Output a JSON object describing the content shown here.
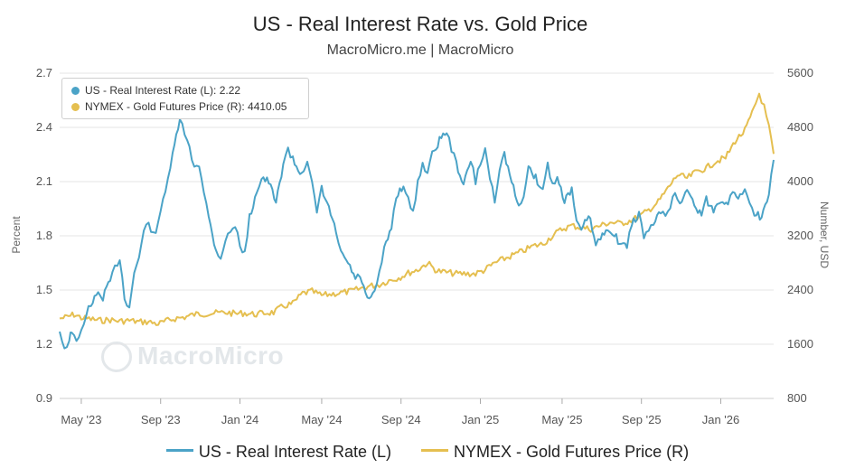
{
  "header": {
    "title": "US - Real Interest Rate vs. Gold Price",
    "subtitle": "MacroMicro.me | MacroMicro"
  },
  "watermark": {
    "text": "MacroMicro",
    "icon": "macromicro-logo-icon"
  },
  "tooltip": {
    "rate_label": "US - Real Interest Rate (L): 2.22",
    "gold_label": "NYMEX - Gold Futures Price (R): 4410.05"
  },
  "legend": {
    "rate": "US - Real Interest Rate (L)",
    "gold": "NYMEX - Gold Futures Price (R)"
  },
  "colors": {
    "rate": "#4ba3c7",
    "gold": "#e5bf50",
    "grid": "#e6e6e6"
  },
  "chart_data": {
    "type": "line",
    "title": "US - Real Interest Rate vs. Gold Price",
    "subtitle": "MacroMicro.me | MacroMicro",
    "ylabel_left": "Percent",
    "ylabel_right": "Number, USD",
    "ylim_left": [
      0.9,
      2.7
    ],
    "ylim_right": [
      800,
      5600
    ],
    "yticks_left": [
      "2.7",
      "2.4",
      "2.1",
      "1.8",
      "1.5",
      "1.2",
      "0.9"
    ],
    "yticks_right": [
      "5600",
      "4800",
      "4000",
      "3200",
      "2400",
      "1600",
      "800"
    ],
    "xlim": [
      2023.25,
      2026.22
    ],
    "xticks": [
      {
        "x": 2023.34,
        "label": "May '23"
      },
      {
        "x": 2023.67,
        "label": "Sep '23"
      },
      {
        "x": 2024.0,
        "label": "Jan '24"
      },
      {
        "x": 2024.34,
        "label": "May '24"
      },
      {
        "x": 2024.67,
        "label": "Sep '24"
      },
      {
        "x": 2025.0,
        "label": "Jan '25"
      },
      {
        "x": 2025.34,
        "label": "May '25"
      },
      {
        "x": 2025.67,
        "label": "Sep '25"
      },
      {
        "x": 2026.0,
        "label": "Jan '26"
      }
    ],
    "grid": true,
    "legend_position": "bottom",
    "series": [
      {
        "name": "US - Real Interest Rate (L)",
        "axis": "left",
        "x": [
          2023.25,
          2023.27,
          2023.29,
          2023.3,
          2023.32,
          2023.34,
          2023.36,
          2023.38,
          2023.41,
          2023.43,
          2023.46,
          2023.48,
          2023.5,
          2023.52,
          2023.54,
          2023.56,
          2023.58,
          2023.6,
          2023.62,
          2023.64,
          2023.66,
          2023.68,
          2023.7,
          2023.72,
          2023.75,
          2023.77,
          2023.79,
          2023.81,
          2023.83,
          2023.85,
          2023.87,
          2023.9,
          2023.92,
          2023.94,
          2023.96,
          2023.98,
          2024.0,
          2024.02,
          2024.04,
          2024.07,
          2024.09,
          2024.12,
          2024.15,
          2024.18,
          2024.2,
          2024.22,
          2024.25,
          2024.28,
          2024.3,
          2024.32,
          2024.34,
          2024.37,
          2024.4,
          2024.42,
          2024.45,
          2024.48,
          2024.5,
          2024.53,
          2024.56,
          2024.58,
          2024.6,
          2024.63,
          2024.65,
          2024.68,
          2024.7,
          2024.72,
          2024.74,
          2024.76,
          2024.78,
          2024.8,
          2024.83,
          2024.86,
          2024.88,
          2024.9,
          2024.93,
          2024.96,
          2024.98,
          2025.0,
          2025.02,
          2025.04,
          2025.06,
          2025.08,
          2025.1,
          2025.13,
          2025.16,
          2025.18,
          2025.2,
          2025.23,
          2025.26,
          2025.28,
          2025.3,
          2025.32,
          2025.35,
          2025.38,
          2025.4,
          2025.42,
          2025.45,
          2025.48,
          2025.5,
          2025.53,
          2025.55,
          2025.58,
          2025.61,
          2025.63,
          2025.66,
          2025.68,
          2025.7,
          2025.72,
          2025.75,
          2025.77,
          2025.79,
          2025.81,
          2025.83,
          2025.86,
          2025.89,
          2025.92,
          2025.94,
          2025.97,
          2026.0,
          2026.03,
          2026.05,
          2026.08,
          2026.1,
          2026.12,
          2026.14,
          2026.17,
          2026.2,
          2026.22
        ],
        "y": [
          1.27,
          1.18,
          1.22,
          1.28,
          1.2,
          1.27,
          1.37,
          1.42,
          1.48,
          1.46,
          1.55,
          1.62,
          1.68,
          1.46,
          1.4,
          1.6,
          1.68,
          1.82,
          1.88,
          1.8,
          1.86,
          2.0,
          2.12,
          2.24,
          2.45,
          2.36,
          2.28,
          2.18,
          2.2,
          2.05,
          1.9,
          1.72,
          1.68,
          1.78,
          1.82,
          1.86,
          1.75,
          1.7,
          1.9,
          2.05,
          2.12,
          2.1,
          1.98,
          2.2,
          2.28,
          2.22,
          2.15,
          2.2,
          2.08,
          1.93,
          2.06,
          1.95,
          1.82,
          1.7,
          1.65,
          1.56,
          1.58,
          1.44,
          1.48,
          1.6,
          1.72,
          1.85,
          2.02,
          2.08,
          2.0,
          1.92,
          2.1,
          2.2,
          2.15,
          2.25,
          2.33,
          2.38,
          2.28,
          2.2,
          2.08,
          2.22,
          2.1,
          2.2,
          2.28,
          2.12,
          2.0,
          2.18,
          2.25,
          2.1,
          1.95,
          2.03,
          2.18,
          2.12,
          2.05,
          2.2,
          2.08,
          2.12,
          2.0,
          2.05,
          1.88,
          1.82,
          1.92,
          1.75,
          1.78,
          1.85,
          1.82,
          1.76,
          1.74,
          1.87,
          1.92,
          1.8,
          1.82,
          1.87,
          1.93,
          1.92,
          1.97,
          2.03,
          1.98,
          2.06,
          1.97,
          1.92,
          2.0,
          1.94,
          2.0,
          1.99,
          2.03,
          2.01,
          2.07,
          2.0,
          1.93,
          1.9,
          2.02,
          2.22
        ]
      },
      {
        "name": "NYMEX - Gold Futures Price (R)",
        "axis": "right",
        "x": [
          2023.25,
          2023.28,
          2023.31,
          2023.34,
          2023.38,
          2023.42,
          2023.46,
          2023.5,
          2023.54,
          2023.58,
          2023.62,
          2023.66,
          2023.7,
          2023.73,
          2023.77,
          2023.81,
          2023.85,
          2023.9,
          2023.94,
          2023.98,
          2024.02,
          2024.06,
          2024.1,
          2024.14,
          2024.18,
          2024.22,
          2024.26,
          2024.3,
          2024.34,
          2024.38,
          2024.42,
          2024.46,
          2024.5,
          2024.54,
          2024.58,
          2024.62,
          2024.66,
          2024.7,
          2024.74,
          2024.78,
          2024.82,
          2024.86,
          2024.9,
          2024.94,
          2024.98,
          2025.02,
          2025.06,
          2025.1,
          2025.14,
          2025.18,
          2025.22,
          2025.26,
          2025.3,
          2025.34,
          2025.38,
          2025.42,
          2025.46,
          2025.5,
          2025.54,
          2025.58,
          2025.62,
          2025.66,
          2025.7,
          2025.74,
          2025.78,
          2025.82,
          2025.86,
          2025.9,
          2025.94,
          2025.98,
          2026.02,
          2026.06,
          2026.1,
          2026.13,
          2026.16,
          2026.18,
          2026.2,
          2026.22
        ],
        "y": [
          1980,
          2000,
          2040,
          1990,
          1970,
          1950,
          1960,
          1940,
          1950,
          1930,
          1930,
          1900,
          1950,
          1980,
          2000,
          2040,
          2050,
          2060,
          2070,
          2050,
          2060,
          2040,
          2060,
          2070,
          2160,
          2200,
          2350,
          2380,
          2320,
          2340,
          2360,
          2380,
          2420,
          2460,
          2480,
          2540,
          2580,
          2650,
          2700,
          2800,
          2680,
          2660,
          2640,
          2640,
          2640,
          2700,
          2800,
          2860,
          2920,
          2980,
          3050,
          3080,
          3200,
          3300,
          3350,
          3320,
          3300,
          3350,
          3400,
          3380,
          3420,
          3480,
          3580,
          3700,
          3900,
          4100,
          4050,
          4150,
          4200,
          4300,
          4350,
          4600,
          4750,
          5000,
          5300,
          5100,
          4800,
          4410
        ]
      }
    ]
  }
}
